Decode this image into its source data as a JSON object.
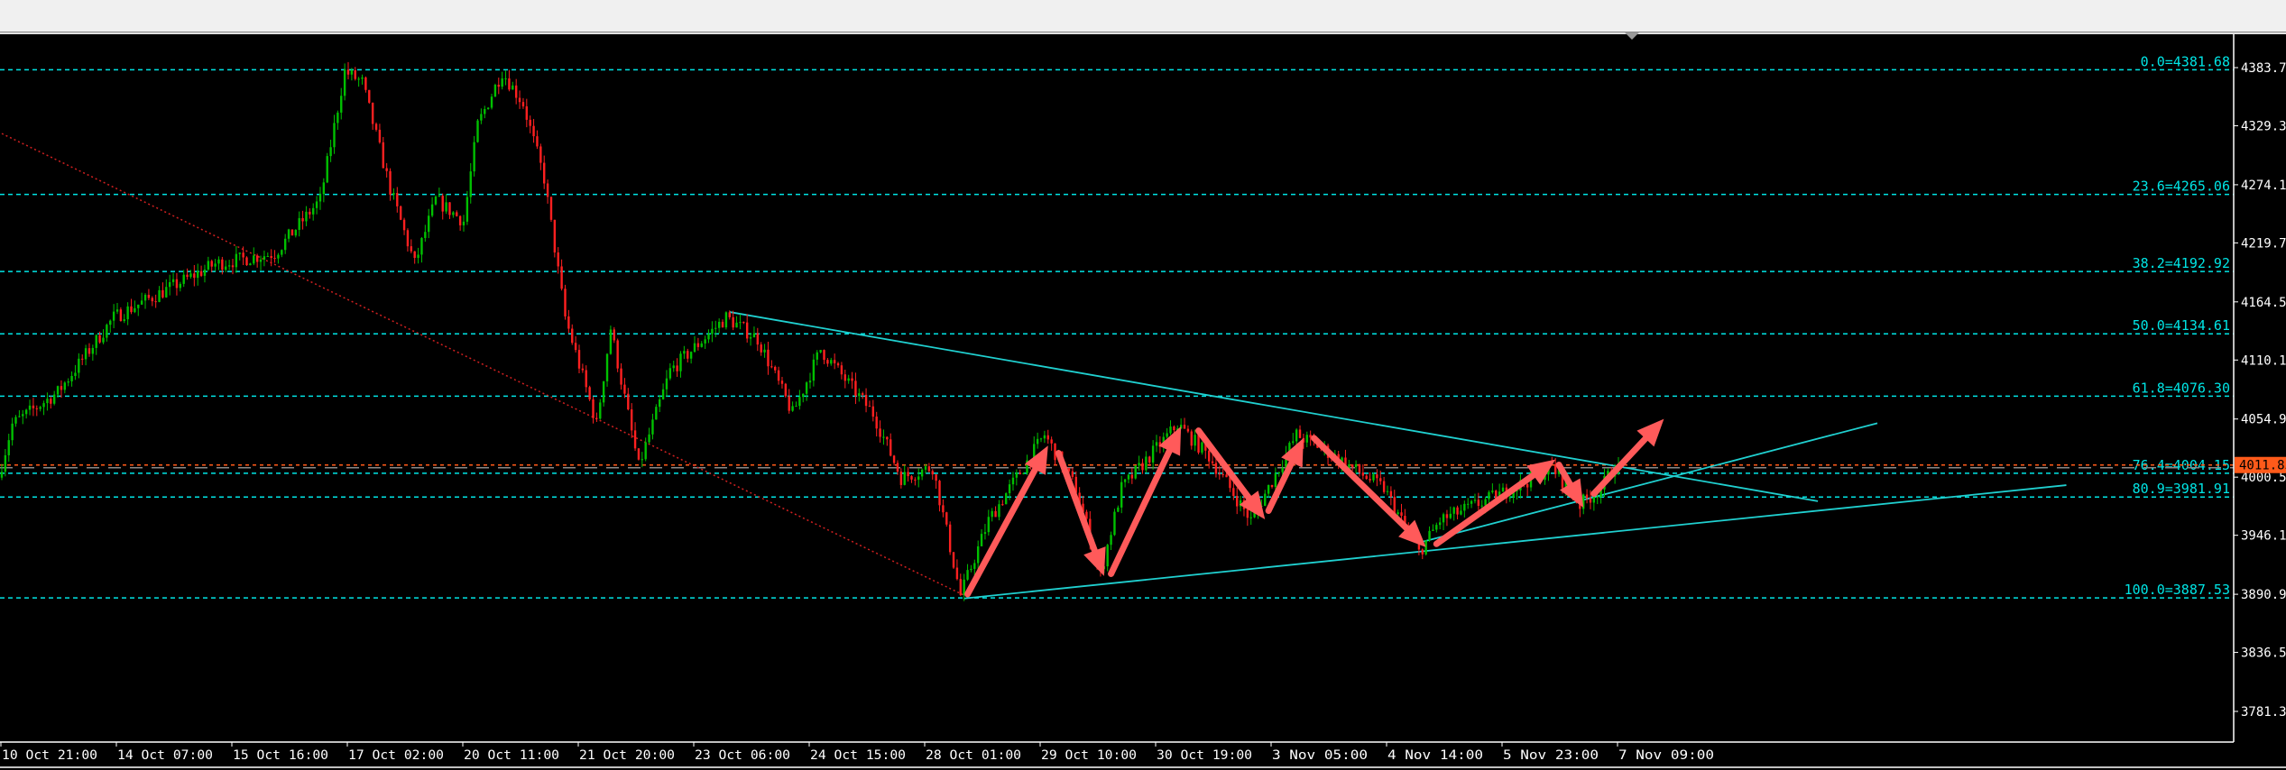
{
  "chart_data": {
    "type": "candlestick",
    "title": "",
    "colors": {
      "background": "#000000",
      "up": "#00c000",
      "down": "#ff2020",
      "fib": "#00e5e5",
      "trend": "#20d0d0",
      "arrow": "#ff5a5a",
      "bid": "#ff5a1a",
      "axis": "#ffffff"
    },
    "y_ticks": [
      "4383.70",
      "4329.30",
      "4274.10",
      "4219.70",
      "4164.50",
      "4110.10",
      "4054.90",
      "4000.50",
      "3946.10",
      "3890.90",
      "3836.50",
      "3781.30"
    ],
    "ylim": [
      3781.3,
      4383.7
    ],
    "x_ticks": [
      "10 Oct 21:00",
      "14 Oct 07:00",
      "15 Oct 16:00",
      "17 Oct 02:00",
      "20 Oct 11:00",
      "21 Oct 20:00",
      "23 Oct 06:00",
      "24 Oct 15:00",
      "28 Oct 01:00",
      "29 Oct 10:00",
      "30 Oct 19:00",
      "3 Nov 05:00",
      "4 Nov 14:00",
      "5 Nov 23:00",
      "7 Nov 09:00"
    ],
    "bars_per_x_tick": 33,
    "price_path": [
      [
        0,
        4000
      ],
      [
        4,
        4050
      ],
      [
        17,
        4080
      ],
      [
        33,
        4150
      ],
      [
        62,
        4200
      ],
      [
        79,
        4210
      ],
      [
        92,
        4260
      ],
      [
        99,
        4380
      ],
      [
        104,
        4370
      ],
      [
        112,
        4270
      ],
      [
        119,
        4200
      ],
      [
        125,
        4260
      ],
      [
        133,
        4240
      ],
      [
        137,
        4330
      ],
      [
        144,
        4380
      ],
      [
        150,
        4350
      ],
      [
        156,
        4280
      ],
      [
        162,
        4150
      ],
      [
        171,
        4050
      ],
      [
        175,
        4140
      ],
      [
        183,
        4010
      ],
      [
        192,
        4100
      ],
      [
        208,
        4150
      ],
      [
        217,
        4130
      ],
      [
        227,
        4060
      ],
      [
        235,
        4120
      ],
      [
        250,
        4060
      ],
      [
        258,
        4000
      ],
      [
        267,
        4010
      ],
      [
        275,
        3890
      ],
      [
        283,
        3960
      ],
      [
        299,
        4040
      ],
      [
        308,
        3990
      ],
      [
        315,
        3910
      ],
      [
        321,
        3990
      ],
      [
        337,
        4050
      ],
      [
        346,
        4020
      ],
      [
        358,
        3960
      ],
      [
        371,
        4040
      ],
      [
        377,
        4030
      ],
      [
        396,
        3990
      ],
      [
        406,
        3930
      ],
      [
        412,
        3960
      ],
      [
        433,
        3990
      ],
      [
        444,
        4010
      ],
      [
        452,
        3975
      ],
      [
        458,
        3990
      ],
      [
        462,
        4011.85
      ]
    ],
    "fib_levels": [
      {
        "label": "0.0=4381.68",
        "price": 4381.68
      },
      {
        "label": "23.6=4265.06",
        "price": 4265.06
      },
      {
        "label": "38.2=4192.92",
        "price": 4192.92
      },
      {
        "label": "50.0=4134.61",
        "price": 4134.61
      },
      {
        "label": "61.8=4076.30",
        "price": 4076.3
      },
      {
        "label": "76.4=4004.15",
        "price": 4004.15
      },
      {
        "label": "80.9=3981.91",
        "price": 3981.91
      },
      {
        "label": "100.0=3887.53",
        "price": 3887.53
      }
    ],
    "current_price": {
      "label": "4011.85",
      "price": 4011.85
    },
    "fib_base_line": {
      "from": [
        0,
        4322
      ],
      "to": [
        275,
        3890
      ]
    },
    "trendlines": [
      {
        "from": [
          208,
          4155
        ],
        "to": [
          519,
          3978
        ]
      },
      {
        "from": [
          275,
          3887
        ],
        "to": [
          590,
          3993
        ]
      },
      {
        "from": [
          406,
          3940
        ],
        "to": [
          536,
          4051
        ]
      }
    ],
    "arrows": [
      {
        "from": [
          276,
          3891
        ],
        "to": [
          299,
          4030
        ]
      },
      {
        "from": [
          302,
          4023
        ],
        "to": [
          315,
          3908
        ]
      },
      {
        "from": [
          317,
          3910
        ],
        "to": [
          337,
          4048
        ]
      },
      {
        "from": [
          342,
          4044
        ],
        "to": [
          361,
          3961
        ]
      },
      {
        "from": [
          362,
          3969
        ],
        "to": [
          372,
          4037
        ]
      },
      {
        "from": [
          375,
          4037
        ],
        "to": [
          407,
          3935
        ]
      },
      {
        "from": [
          410,
          3938
        ],
        "to": [
          444,
          4017
        ]
      },
      {
        "from": [
          445,
          4012
        ],
        "to": [
          452,
          3972
        ]
      },
      {
        "from": [
          455,
          3985
        ],
        "to": [
          475,
          4055
        ]
      }
    ]
  }
}
